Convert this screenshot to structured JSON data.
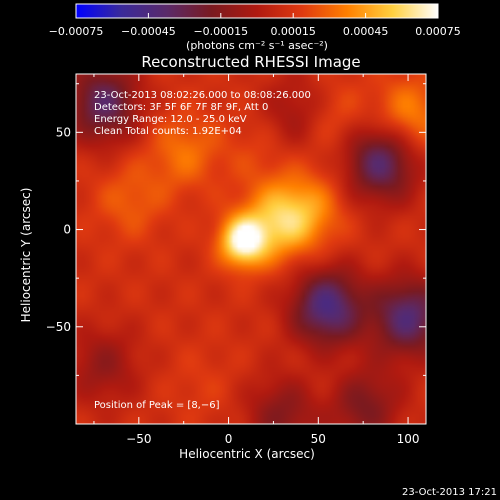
{
  "colors": {
    "background": "#000000",
    "text": "#ffffff",
    "colormap": [
      "#0000ff",
      "#3a2a9a",
      "#5a2a6a",
      "#7a1a20",
      "#b01a10",
      "#e03a10",
      "#ff8000",
      "#ffd040",
      "#ffffff"
    ]
  },
  "chart_data": {
    "type": "heatmap",
    "title": "Reconstructed RHESSI Image",
    "xlabel": "Heliocentric X (arcsec)",
    "ylabel": "Heliocentric Y (arcsec)",
    "xlim": [
      -85,
      110
    ],
    "ylim": [
      -100,
      80
    ],
    "xticks": [
      -50,
      0,
      50,
      100
    ],
    "xtick_labels": [
      "−50",
      "0",
      "50",
      "100"
    ],
    "yticks": [
      -50,
      0,
      50
    ],
    "ytick_labels": [
      "−50",
      "0",
      "50"
    ],
    "colorbar": {
      "min": -0.00075,
      "max": 0.00075,
      "ticks": [
        -0.00075,
        -0.00045,
        -0.00015,
        0.00015,
        0.00045,
        0.00075
      ],
      "tick_labels": [
        "−0.00075",
        "−0.00045",
        "−0.00015",
        "0.00015",
        "0.00045",
        "0.00075"
      ],
      "unit_label": "(photons cm⁻² s⁻¹ asec⁻²)"
    },
    "annotations": [
      "23-Oct-2013 08:02:26.000 to 08:08:26.000",
      "Detectors: 3F 5F 6F 7F 8F 9F, Att 0",
      "Energy Range: 12.0 - 25.0 keV",
      "Clean    Total counts: 1.92E+04"
    ],
    "peak_label": "Position of Peak = [8,−6]",
    "peak": {
      "x": 8,
      "y": -6
    },
    "features": [
      {
        "x": 8,
        "y": -6,
        "value": 0.00075
      },
      {
        "x": 28,
        "y": 4,
        "value": 0.0005
      },
      {
        "x": 45,
        "y": 10,
        "value": 0.00035
      },
      {
        "x": -25,
        "y": 40,
        "value": 0.00033
      },
      {
        "x": 100,
        "y": 58,
        "value": 0.0004
      },
      {
        "x": 55,
        "y": 58,
        "value": 0.0003
      },
      {
        "x": -55,
        "y": 15,
        "value": 0.00028
      },
      {
        "x": 15,
        "y": 40,
        "value": 0.0002
      },
      {
        "x": -15,
        "y": -80,
        "value": 0.00018
      },
      {
        "x": 60,
        "y": -80,
        "value": 0.00017
      },
      {
        "x": -70,
        "y": 65,
        "value": -0.00035
      },
      {
        "x": 40,
        "y": 60,
        "value": -0.00012
      },
      {
        "x": 85,
        "y": 35,
        "value": -0.0004
      },
      {
        "x": 100,
        "y": -45,
        "value": -0.0004
      },
      {
        "x": 55,
        "y": -40,
        "value": -0.00045
      },
      {
        "x": 75,
        "y": -90,
        "value": -0.0002
      },
      {
        "x": -70,
        "y": -70,
        "value": -0.0001
      },
      {
        "x": 30,
        "y": -95,
        "value": -0.00015
      }
    ]
  },
  "footer": {
    "timestamp": "23-Oct-2013 17:21"
  }
}
